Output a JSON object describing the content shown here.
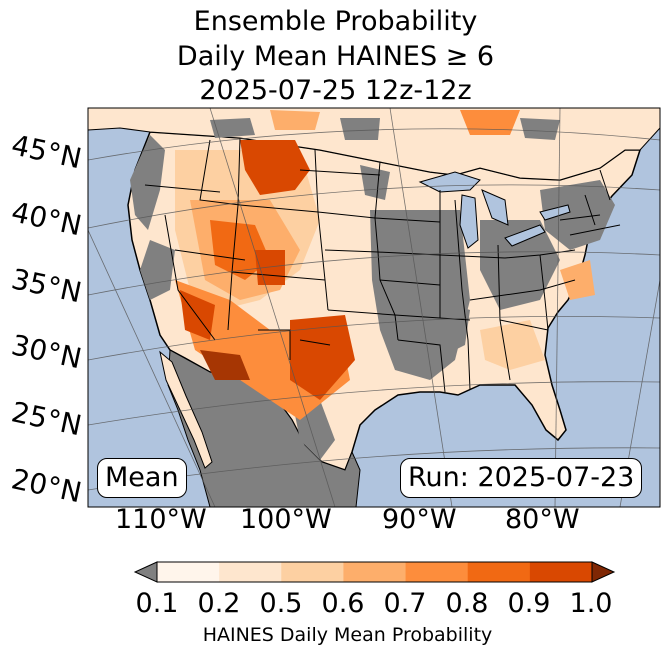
{
  "title": {
    "line1": "Ensemble Probability",
    "line2": "Daily Mean HAINES ≥ 6",
    "line3": "2025-07-25 12z-12z"
  },
  "map": {
    "lat_labels": [
      "45°N",
      "40°N",
      "35°N",
      "30°N",
      "25°N",
      "20°N"
    ],
    "lon_labels": [
      "110°W",
      "100°W",
      "90°W",
      "80°W"
    ],
    "mean_box": "Mean",
    "run_box": "Run: 2025-07-23"
  },
  "colors": {
    "ocean": "#b0c4de",
    "land_gray": "#808080",
    "bins": [
      "#fff5eb",
      "#fee6ce",
      "#fdd0a2",
      "#fdae6b",
      "#fd8d3c",
      "#f16913",
      "#d94801",
      "#a63603"
    ],
    "under": "#808080",
    "over": "#7f2704"
  },
  "colorbar": {
    "ticks": [
      "0.1",
      "0.2",
      "0.5",
      "0.6",
      "0.7",
      "0.8",
      "0.9",
      "1.0"
    ],
    "label": "HAINES Daily Mean Probability"
  }
}
